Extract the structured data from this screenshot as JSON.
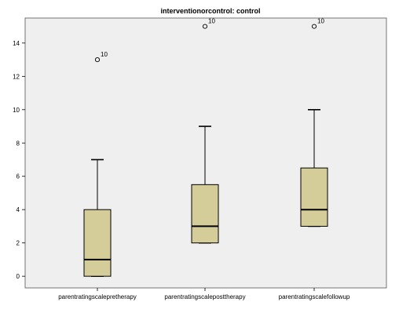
{
  "chart_data": {
    "type": "boxplot",
    "title": "interventionorcontrol: control",
    "xlabel": "",
    "ylabel": "",
    "ylim": [
      -0.7,
      15.5
    ],
    "yticks": [
      "0",
      "2",
      "4",
      "6",
      "8",
      "10",
      "12",
      "14"
    ],
    "grid": false,
    "colors": {
      "plot_bg": "#efefef",
      "box_fill": "#d4cd9a",
      "stroke": "#000000"
    },
    "categories": [
      "parentratingscalepretherapy",
      "parentratingscaleposttherapy",
      "parentratingscalefollowup"
    ],
    "boxes": [
      {
        "whisker_low": 0,
        "q1": 0,
        "median": 1,
        "q3": 4,
        "whisker_high": 7,
        "outliers": [
          {
            "value": 13,
            "label": "10"
          }
        ]
      },
      {
        "whisker_low": 2,
        "q1": 2,
        "median": 3,
        "q3": 5.5,
        "whisker_high": 9,
        "outliers": [
          {
            "value": 15,
            "label": "10"
          }
        ]
      },
      {
        "whisker_low": 3,
        "q1": 3,
        "median": 4,
        "q3": 6.5,
        "whisker_high": 10,
        "outliers": [
          {
            "value": 15,
            "label": "10"
          }
        ]
      }
    ]
  }
}
